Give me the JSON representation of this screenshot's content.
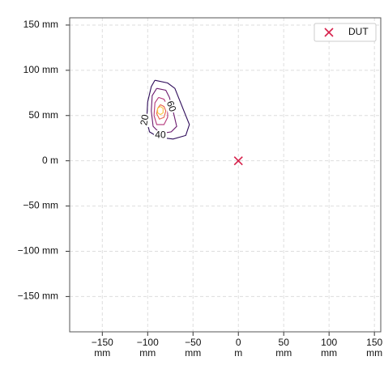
{
  "chart_data": {
    "type": "contour",
    "xlim": [
      -186,
      157
    ],
    "ylim": [
      -189,
      158
    ],
    "xticks": [
      {
        "value": -150,
        "label": "−150 mm"
      },
      {
        "value": -100,
        "label": "−100 mm"
      },
      {
        "value": -50,
        "label": "−50 mm"
      },
      {
        "value": 0,
        "label": "0 m"
      },
      {
        "value": 50,
        "label": "50 mm"
      },
      {
        "value": 100,
        "label": "100 mm"
      },
      {
        "value": 150,
        "label": "150 mm"
      }
    ],
    "yticks": [
      {
        "value": 150,
        "label": "150 mm"
      },
      {
        "value": 100,
        "label": "100 mm"
      },
      {
        "value": 50,
        "label": "50 mm"
      },
      {
        "value": 0,
        "label": "0 m"
      },
      {
        "value": -50,
        "label": "−50 mm"
      },
      {
        "value": -100,
        "label": "−100 mm"
      },
      {
        "value": -150,
        "label": "−150 mm"
      }
    ],
    "grid": true,
    "contours": [
      {
        "label": "20",
        "color": "#2d0b59",
        "x": [
          -92,
          -78,
          -70,
          -66,
          -60,
          -54,
          -58,
          -72,
          -88,
          -98,
          -101,
          -100,
          -96,
          -92
        ],
        "y": [
          89,
          86,
          80,
          70,
          55,
          40,
          28,
          24,
          26,
          32,
          45,
          65,
          82,
          89
        ]
      },
      {
        "label": "40",
        "color": "#6b1a6e",
        "x": [
          -90,
          -80,
          -76,
          -72,
          -68,
          -74,
          -86,
          -94,
          -96,
          -95,
          -90
        ],
        "y": [
          80,
          78,
          70,
          55,
          38,
          32,
          30,
          38,
          55,
          72,
          80
        ]
      },
      {
        "label": "60",
        "color": "#b5367a",
        "x": [
          -88,
          -82,
          -78,
          -78,
          -82,
          -90,
          -93,
          -92,
          -88
        ],
        "y": [
          70,
          68,
          60,
          48,
          40,
          40,
          50,
          64,
          70
        ]
      },
      {
        "color": "#e8604a",
        "x": [
          -86,
          -82,
          -80,
          -82,
          -87,
          -90,
          -89,
          -86
        ],
        "y": [
          62,
          60,
          55,
          48,
          46,
          52,
          58,
          62
        ]
      },
      {
        "color": "#f9c33f",
        "x": [
          -86,
          -83,
          -83,
          -86,
          -89,
          -89,
          -86
        ],
        "y": [
          60,
          58,
          53,
          51,
          53,
          58,
          60
        ]
      }
    ],
    "markers": [
      {
        "name": "DUT",
        "color": "#d6204a",
        "x": 0,
        "y": 0
      }
    ],
    "legend": "upper right"
  }
}
